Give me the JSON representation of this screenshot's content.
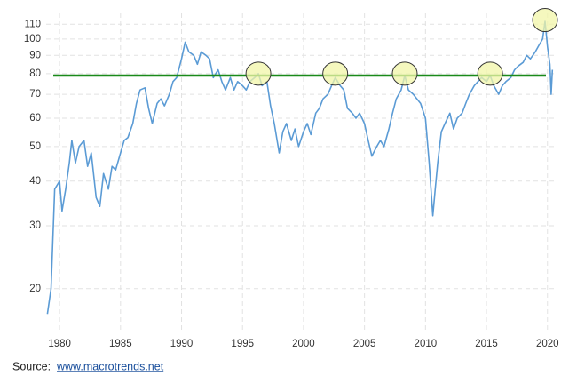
{
  "chart_data": {
    "type": "line",
    "x": [
      1979.0,
      1979.3,
      1979.6,
      1980.0,
      1980.2,
      1980.5,
      1980.8,
      1981.0,
      1981.3,
      1981.6,
      1982.0,
      1982.3,
      1982.6,
      1983.0,
      1983.3,
      1983.6,
      1984.0,
      1984.3,
      1984.6,
      1985.0,
      1985.3,
      1985.6,
      1986.0,
      1986.3,
      1986.6,
      1987.0,
      1987.3,
      1987.6,
      1988.0,
      1988.3,
      1988.6,
      1989.0,
      1989.3,
      1989.6,
      1990.0,
      1990.3,
      1990.6,
      1991.0,
      1991.3,
      1991.6,
      1992.0,
      1992.3,
      1992.6,
      1993.0,
      1993.3,
      1993.6,
      1994.0,
      1994.3,
      1994.6,
      1995.0,
      1995.3,
      1995.6,
      1996.0,
      1996.3,
      1996.6,
      1997.0,
      1997.3,
      1997.6,
      1998.0,
      1998.3,
      1998.6,
      1999.0,
      1999.3,
      1999.6,
      2000.0,
      2000.3,
      2000.6,
      2001.0,
      2001.3,
      2001.6,
      2002.0,
      2002.3,
      2002.6,
      2003.0,
      2003.3,
      2003.6,
      2004.0,
      2004.3,
      2004.6,
      2005.0,
      2005.3,
      2005.6,
      2006.0,
      2006.3,
      2006.6,
      2007.0,
      2007.3,
      2007.6,
      2008.0,
      2008.3,
      2008.6,
      2009.0,
      2009.3,
      2009.6,
      2010.0,
      2010.3,
      2010.6,
      2010.8,
      2011.0,
      2011.3,
      2011.6,
      2012.0,
      2012.3,
      2012.6,
      2013.0,
      2013.3,
      2013.6,
      2014.0,
      2014.3,
      2014.6,
      2015.0,
      2015.3,
      2015.6,
      2016.0,
      2016.3,
      2016.6,
      2017.0,
      2017.3,
      2017.6,
      2018.0,
      2018.3,
      2018.6,
      2019.0,
      2019.3,
      2019.6,
      2019.8,
      2020.0,
      2020.2,
      2020.3,
      2020.4
    ],
    "series": [
      {
        "color": "#5b9bd5",
        "values": [
          17,
          20,
          38,
          40,
          33,
          38,
          45,
          52,
          45,
          50,
          52,
          44,
          48,
          36,
          34,
          42,
          38,
          44,
          43,
          48,
          52,
          53,
          58,
          66,
          72,
          73,
          64,
          58,
          66,
          68,
          65,
          70,
          76,
          78,
          88,
          98,
          92,
          90,
          85,
          92,
          90,
          88,
          78,
          82,
          76,
          72,
          78,
          72,
          76,
          74,
          72,
          76,
          78,
          80,
          74,
          76,
          65,
          58,
          48,
          55,
          58,
          52,
          56,
          50,
          55,
          58,
          54,
          62,
          64,
          68,
          70,
          74,
          78,
          74,
          72,
          64,
          62,
          60,
          62,
          58,
          52,
          47,
          50,
          52,
          50,
          56,
          62,
          68,
          72,
          79,
          72,
          70,
          68,
          66,
          60,
          45,
          32,
          38,
          45,
          55,
          58,
          62,
          56,
          60,
          62,
          66,
          70,
          74,
          76,
          78,
          76,
          79,
          74,
          70,
          74,
          76,
          78,
          82,
          84,
          86,
          90,
          88,
          92,
          96,
          100,
          112,
          95,
          85,
          70,
          82
        ]
      }
    ],
    "xlim": [
      1978.9,
      2020.6
    ],
    "xticks": [
      1980,
      1985,
      1990,
      1995,
      2000,
      2005,
      2010,
      2015,
      2020
    ],
    "ylim": [
      15,
      118
    ],
    "yticks": [
      20,
      30,
      40,
      50,
      60,
      70,
      80,
      90,
      100,
      110
    ],
    "log_y": true,
    "grid": true,
    "reference_line": {
      "y": 79,
      "color": "#1a8a1a"
    },
    "highlights": [
      {
        "x": 1996.3,
        "y": 80
      },
      {
        "x": 2002.6,
        "y": 80
      },
      {
        "x": 2008.3,
        "y": 80
      },
      {
        "x": 2015.3,
        "y": 80
      },
      {
        "x": 2019.8,
        "y": 113
      }
    ],
    "highlight_color": "#f2f5a8"
  },
  "source": {
    "label": "Source:",
    "link": "www.macrotrends.net"
  }
}
